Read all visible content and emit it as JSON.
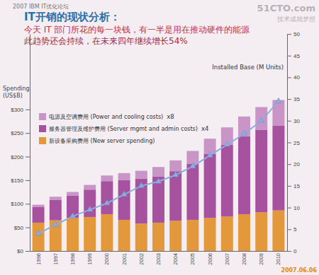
{
  "chart_data": {
    "type": "bar",
    "stacked": true,
    "title": "IT开销的现状分析：",
    "subtitle": [
      "今天 IT 部门所花的每一块钱，有一半是用在推动硬件的能源",
      "此趋势还会持续，在未来四年继续增长54%"
    ],
    "annotations": [
      "2007 IBM IT优化论坛",
      "x8",
      "x4",
      "51CTO.com",
      "技术成就梦想",
      "2007.06.06"
    ],
    "y_label": "Spending (US$B)",
    "categories": [
      "1996",
      "1997",
      "1998",
      "1999",
      "2000",
      "2001",
      "2002",
      "2003",
      "2004",
      "2005",
      "2006",
      "2007",
      "2008",
      "2009",
      "2010"
    ],
    "series": [
      {
        "name": "新设备采购费用 (New server spending)",
        "type": "bar",
        "color": "#e3983c",
        "values": [
          60,
          65,
          70,
          72,
          78,
          66,
          58,
          60,
          64,
          66,
          70,
          73,
          78,
          82,
          86
        ]
      },
      {
        "name": "服务器管理及维护费用 (Server mgmt and admin costs)",
        "type": "bar",
        "color": "#a6529f",
        "values": [
          33,
          43,
          47,
          58,
          70,
          84,
          95,
          98,
          105,
          119,
          136,
          152,
          165,
          175,
          180
        ]
      },
      {
        "name": "电源及空调费用 (Power and cooling costs)",
        "type": "bar",
        "color": "#c994c6",
        "values": [
          5,
          7,
          8,
          10,
          12,
          15,
          17,
          20,
          23,
          27,
          32,
          37,
          42,
          48,
          54
        ]
      },
      {
        "name": "Installed Base (M Units)",
        "type": "line",
        "axis": "y2",
        "color": "#8aaee0",
        "marker": "triangle",
        "values": [
          4,
          6,
          8,
          9.5,
          11,
          13,
          15,
          16,
          17.5,
          19.5,
          22,
          24.5,
          27,
          30,
          34.5
        ]
      }
    ],
    "ylim": [
      0,
      460
    ],
    "yticks": [
      {
        "value": 0,
        "label": "$0"
      },
      {
        "value": 50,
        "label": "$50"
      },
      {
        "value": 100,
        "label": "$100"
      },
      {
        "value": 150,
        "label": "$150"
      },
      {
        "value": 200,
        "label": "$200"
      },
      {
        "value": 250,
        "label": "$250"
      },
      {
        "value": 300,
        "label": "$300"
      }
    ],
    "y2lim": [
      0,
      50
    ],
    "y2ticks": [
      0,
      5,
      10,
      15,
      20,
      25,
      30,
      35,
      40,
      45,
      50
    ],
    "grid": false,
    "legend": "upper left"
  }
}
